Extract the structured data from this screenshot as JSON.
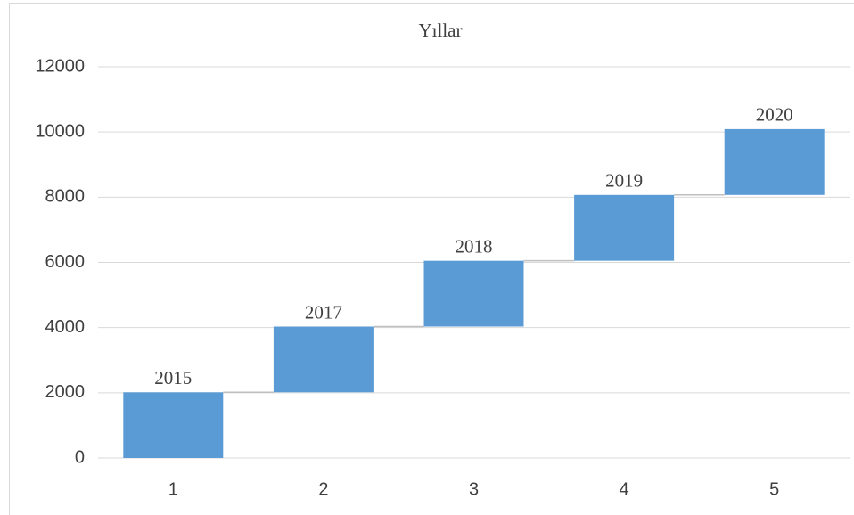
{
  "chart_data": {
    "type": "waterfall",
    "title": "Yıllar",
    "categories": [
      "1",
      "2",
      "3",
      "4",
      "5"
    ],
    "values": [
      2015,
      2017,
      2018,
      2019,
      2020
    ],
    "color": "#5b9bd5",
    "ylim": [
      0,
      12000
    ],
    "yticks": [
      0,
      2000,
      4000,
      6000,
      8000,
      10000,
      12000
    ],
    "grid": true
  }
}
